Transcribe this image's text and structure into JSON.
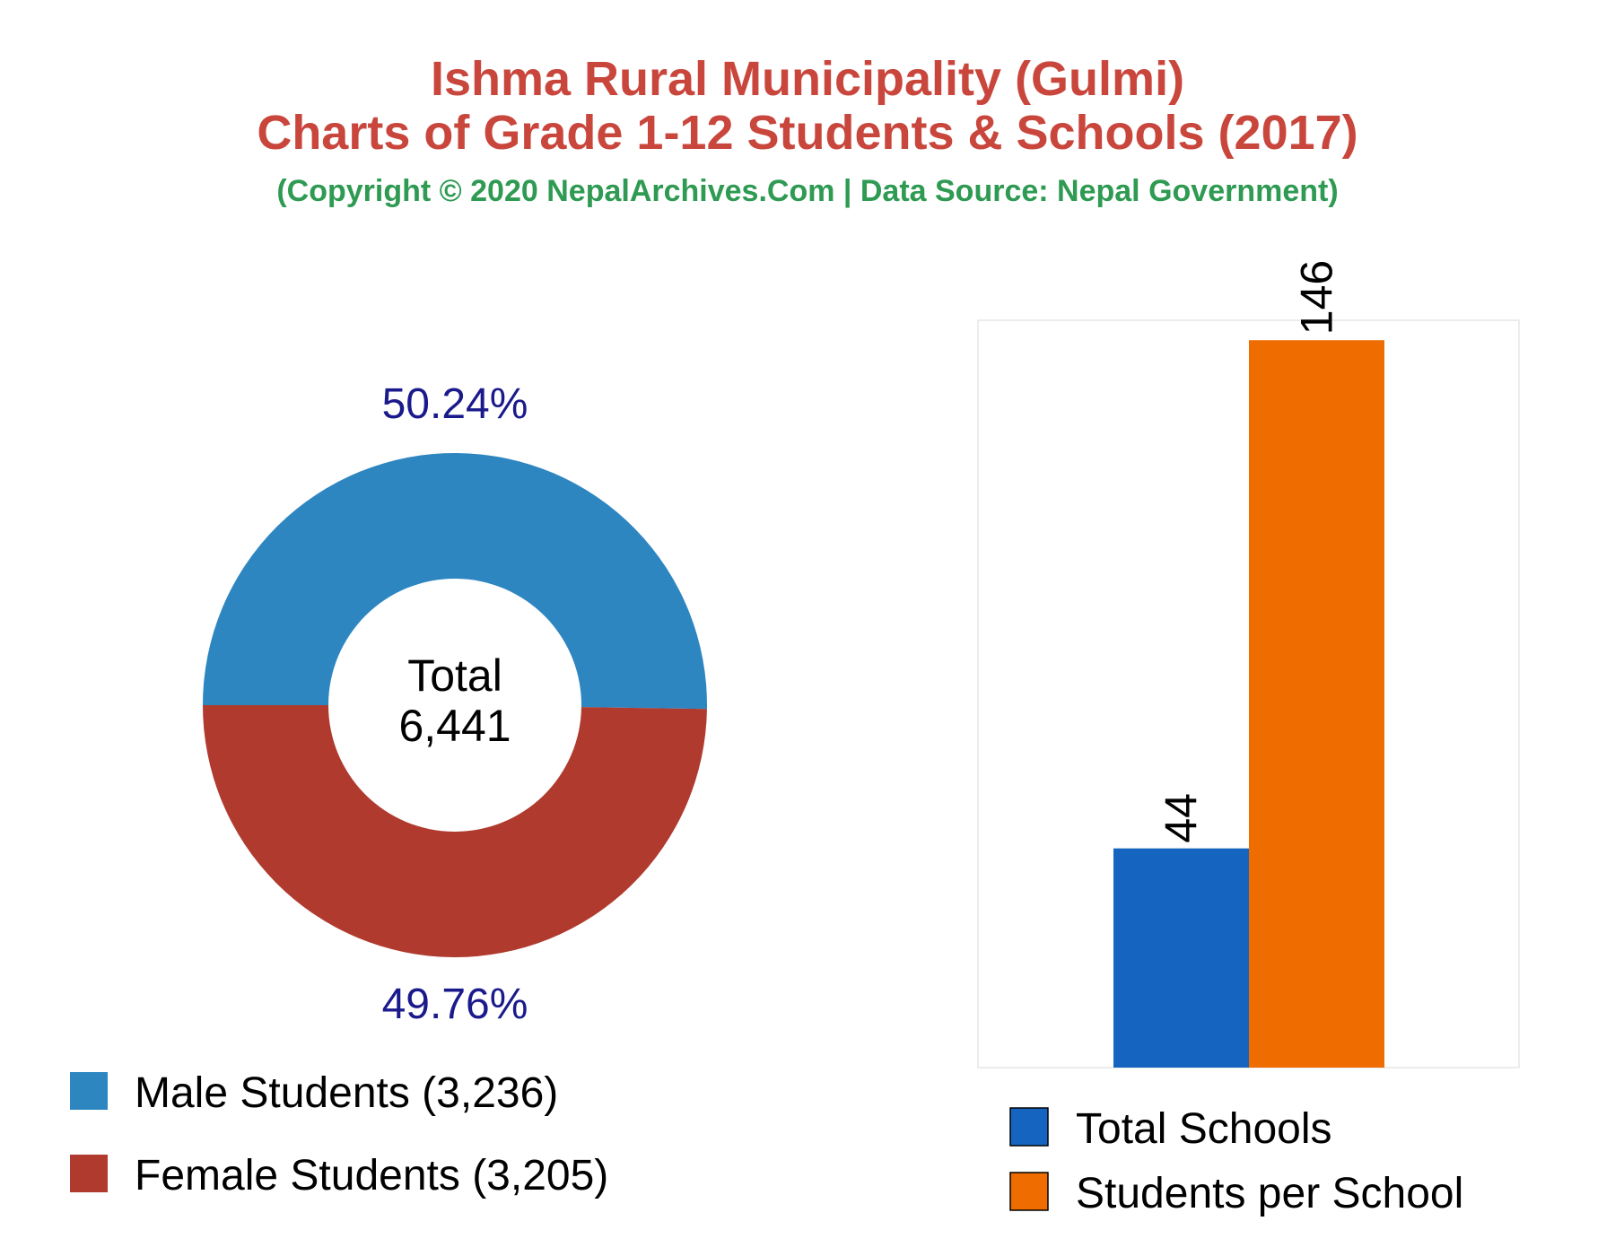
{
  "header": {
    "title_line1": "Ishma Rural Municipality (Gulmi)",
    "title_line2": "Charts of Grade 1-12 Students & Schools (2017)",
    "subtitle": "(Copyright © 2020 NepalArchives.Com | Data Source: Nepal Government)"
  },
  "colors": {
    "title": "#c9463d",
    "subtitle": "#2e9a52",
    "percent_label": "#1a1a8c",
    "male": "#2e86c1",
    "female": "#b03a2e",
    "schools": "#1565c0",
    "students_per_school": "#ef6c00"
  },
  "chart_data": [
    {
      "type": "pie",
      "variant": "donut",
      "center_label": {
        "line1": "Total",
        "line2": "6,441"
      },
      "slices": [
        {
          "name": "Male Students",
          "value": 3236,
          "percent_label": "50.24%",
          "legend_label": "Male Students (3,236)",
          "color": "#2e86c1"
        },
        {
          "name": "Female Students",
          "value": 3205,
          "percent_label": "49.76%",
          "legend_label": "Female Students (3,205)",
          "color": "#b03a2e"
        }
      ],
      "legend_placement": "bottom-left"
    },
    {
      "type": "bar",
      "categories": [
        "Total Schools",
        "Students per School"
      ],
      "values": [
        44,
        146
      ],
      "value_labels": [
        "44",
        "146"
      ],
      "colors": [
        "#1565c0",
        "#ef6c00"
      ],
      "ylim": [
        0,
        150
      ],
      "grid": false,
      "legend_placement": "bottom"
    }
  ]
}
